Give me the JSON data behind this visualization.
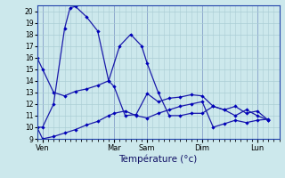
{
  "xlabel": "Température (°c)",
  "background_color": "#cce8ec",
  "grid_color": "#aacdd4",
  "line_color": "#1a1aaa",
  "marker_color": "#0000bb",
  "ylim": [
    9,
    20.5
  ],
  "ytick_min": 9,
  "ytick_max": 20,
  "xlim_min": 0,
  "xlim_max": 44,
  "day_labels": [
    "Ven",
    "Mar",
    "Sam",
    "Dim",
    "Lun"
  ],
  "day_x": [
    1,
    14,
    20,
    30,
    40
  ],
  "line1_x": [
    0,
    1,
    3,
    5,
    7,
    9,
    11,
    13,
    14,
    16,
    18,
    20,
    22,
    24,
    26,
    28,
    30,
    32,
    34,
    36,
    38,
    40,
    42
  ],
  "line1_y": [
    16.0,
    15.0,
    13.0,
    12.7,
    13.1,
    13.3,
    13.6,
    14.0,
    13.5,
    11.0,
    11.1,
    12.9,
    12.2,
    12.5,
    12.6,
    12.8,
    12.7,
    11.8,
    11.5,
    11.8,
    11.2,
    11.4,
    10.6
  ],
  "line2_x": [
    0,
    1,
    3,
    5,
    7,
    9,
    11,
    13,
    14,
    16,
    18,
    20,
    22,
    24,
    26,
    28,
    30,
    32,
    34,
    36,
    38,
    40,
    42
  ],
  "line2_y": [
    10.0,
    9.0,
    9.2,
    9.5,
    9.8,
    10.2,
    10.5,
    11.0,
    11.2,
    11.4,
    11.0,
    10.8,
    11.2,
    11.5,
    11.8,
    12.0,
    12.2,
    10.0,
    10.3,
    10.6,
    10.4,
    10.6,
    10.7
  ],
  "line3_x": [
    0,
    1,
    3,
    5,
    6,
    7,
    9,
    11,
    13,
    15,
    17,
    19,
    20,
    22,
    24,
    26,
    28,
    30,
    32,
    34,
    36,
    38,
    40,
    42
  ],
  "line3_y": [
    10.0,
    10.0,
    12.0,
    18.5,
    20.3,
    20.4,
    19.5,
    18.3,
    14.0,
    17.0,
    18.0,
    17.0,
    15.5,
    13.0,
    11.0,
    11.0,
    11.2,
    11.2,
    11.8,
    11.5,
    11.0,
    11.5,
    11.0,
    10.6
  ]
}
